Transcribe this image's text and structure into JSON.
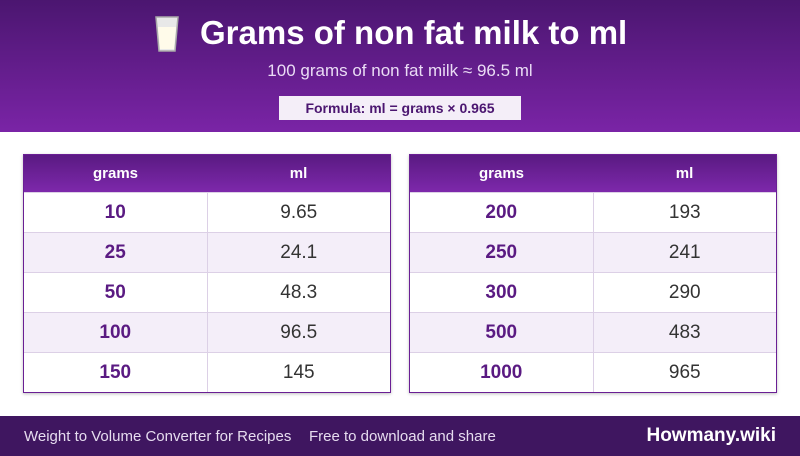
{
  "header": {
    "title": "Grams of non fat milk to ml",
    "subtitle": "100 grams of non fat milk ≈ 96.5 ml",
    "formula": "Formula: ml = grams × 0.965"
  },
  "tables": [
    {
      "columns": [
        "grams",
        "ml"
      ],
      "rows": [
        [
          "10",
          "9.65"
        ],
        [
          "25",
          "24.1"
        ],
        [
          "50",
          "48.3"
        ],
        [
          "100",
          "96.5"
        ],
        [
          "150",
          "145"
        ]
      ]
    },
    {
      "columns": [
        "grams",
        "ml"
      ],
      "rows": [
        [
          "200",
          "193"
        ],
        [
          "250",
          "241"
        ],
        [
          "300",
          "290"
        ],
        [
          "500",
          "483"
        ],
        [
          "1000",
          "965"
        ]
      ]
    }
  ],
  "footer": {
    "left": "Weight to Volume Converter for Recipes",
    "middle": "Free to download and share",
    "brand": "Howmany.wiki"
  }
}
